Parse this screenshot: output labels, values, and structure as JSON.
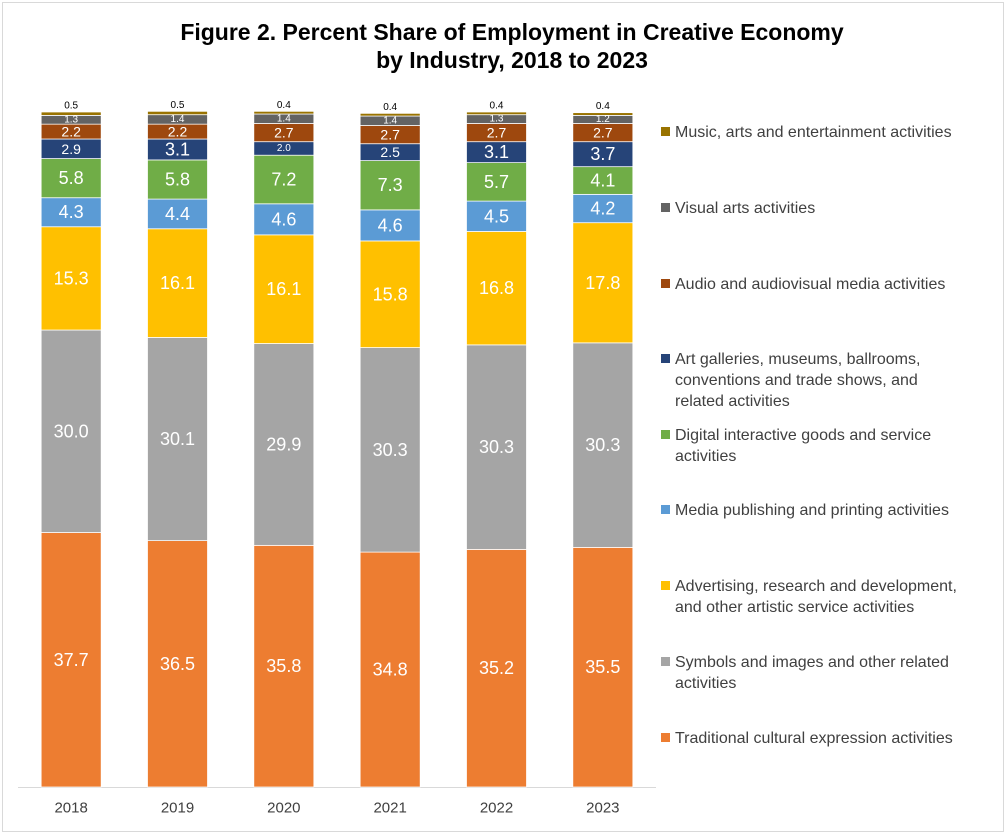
{
  "chart_data": {
    "type": "bar",
    "stacked": true,
    "title_lines": [
      "Figure 2. Percent Share of Employment in Creative Economy",
      "by Industry, 2018 to 2023"
    ],
    "categories": [
      "2018",
      "2019",
      "2020",
      "2021",
      "2022",
      "2023"
    ],
    "ylim": [
      0,
      100
    ],
    "grid": false,
    "legend_position": "right",
    "series": [
      {
        "name": "Traditional cultural expression activities",
        "color": "#ED7D31",
        "label_color": "#ffffff",
        "values": [
          37.7,
          36.5,
          35.8,
          34.8,
          35.2,
          35.5
        ]
      },
      {
        "name": "Symbols and images and other related activities",
        "color": "#A5A5A5",
        "label_color": "#ffffff",
        "values": [
          30.0,
          30.1,
          29.9,
          30.3,
          30.3,
          30.3
        ]
      },
      {
        "name": "Advertising, research and development, and other artistic service activities",
        "color": "#FFC000",
        "label_color": "#ffffff",
        "values": [
          15.3,
          16.1,
          16.1,
          15.8,
          16.8,
          17.8
        ]
      },
      {
        "name": "Media publishing and printing activities",
        "color": "#5B9BD5",
        "label_color": "#ffffff",
        "values": [
          4.3,
          4.4,
          4.6,
          4.6,
          4.5,
          4.2
        ]
      },
      {
        "name": "Digital interactive goods and service activities",
        "color": "#70AD47",
        "label_color": "#ffffff",
        "values": [
          5.8,
          5.8,
          7.2,
          7.3,
          5.7,
          4.1
        ]
      },
      {
        "name": "Art galleries, museums, ballrooms, conventions and trade shows, and related activities",
        "color": "#264478",
        "label_color": "#ffffff",
        "values": [
          2.9,
          3.1,
          2.0,
          2.5,
          3.1,
          3.7
        ]
      },
      {
        "name": "Audio and audiovisual media activities",
        "color": "#9E480E",
        "label_color": "#ffffff",
        "values": [
          2.2,
          2.2,
          2.7,
          2.7,
          2.7,
          2.7
        ]
      },
      {
        "name": "Visual arts activities",
        "color": "#636363",
        "label_color": "#ffffff",
        "values": [
          1.3,
          1.4,
          1.4,
          1.4,
          1.3,
          1.2
        ]
      },
      {
        "name": "Music, arts and entertainment activities",
        "color": "#997300",
        "label_color": "#000000",
        "values": [
          0.5,
          0.5,
          0.4,
          0.4,
          0.4,
          0.4
        ]
      }
    ]
  },
  "legend": {
    "items": [
      {
        "label": "Music, arts and entertainment activities",
        "color": "#997300"
      },
      {
        "label": "Visual arts activities",
        "color": "#636363"
      },
      {
        "label": "Audio and audiovisual media activities",
        "color": "#9E480E"
      },
      {
        "label": "Art galleries, museums, ballrooms,\nconventions and trade shows, and\nrelated activities",
        "color": "#264478"
      },
      {
        "label": "Digital interactive goods and service\nactivities",
        "color": "#70AD47"
      },
      {
        "label": "Media publishing and printing activities",
        "color": "#5B9BD5"
      },
      {
        "label": "Advertising, research and development,\nand other artistic service activities",
        "color": "#FFC000"
      },
      {
        "label": "Symbols and images and other related\nactivities",
        "color": "#A5A5A5"
      },
      {
        "label": "Traditional cultural expression activities",
        "color": "#ED7D31"
      }
    ]
  }
}
